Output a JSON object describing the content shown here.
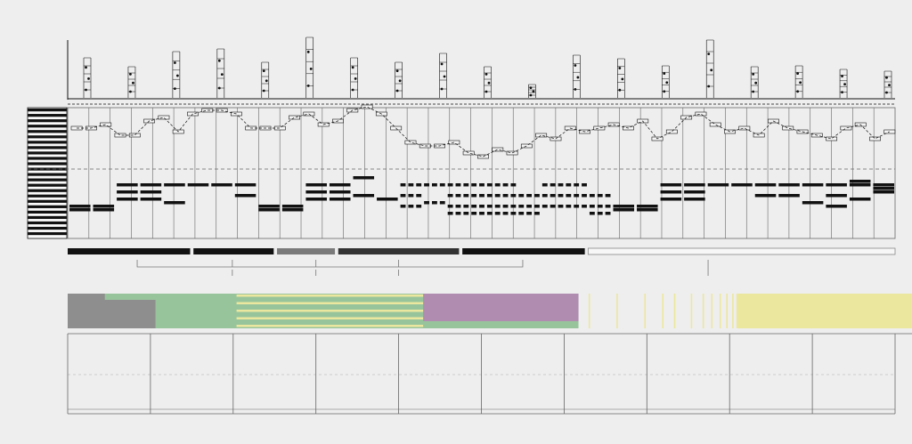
{
  "colors": {
    "background": "#eeeeee",
    "ink": "#111111",
    "grid": "#666666",
    "note_fill": "#f5f5f5",
    "segment_black": "#111111",
    "segment_gray": "#7a7a7a",
    "segment_dark": "#333333",
    "segment_white": "#f7f7f7",
    "green": "#98c49c",
    "gray_block": "#8e8e8e",
    "purple": "#b18cb1",
    "yellow": "#ece79e"
  },
  "icons": {
    "keyboard": "piano-keyboard-icon",
    "staff": "score-staff-icon"
  },
  "melody_steps": [
    9,
    9,
    10,
    7,
    7,
    11,
    12,
    8,
    13,
    14,
    14,
    13,
    9,
    9,
    9,
    12,
    13,
    10,
    11,
    14,
    15,
    13,
    9,
    5,
    4,
    4,
    5,
    2,
    1,
    3,
    2,
    4,
    7,
    6,
    9,
    8,
    9,
    10,
    9,
    11,
    6,
    8,
    12,
    13,
    10,
    8,
    9,
    7,
    11,
    9,
    8,
    7,
    6,
    9,
    10,
    6,
    8
  ],
  "chords": [
    [
      9,
      8
    ],
    [
      9,
      8
    ],
    [
      11,
      13,
      15
    ],
    [
      11,
      13,
      15
    ],
    [
      10,
      15
    ],
    [
      15
    ],
    [
      15
    ],
    [
      15,
      12
    ],
    [
      9,
      8
    ],
    [
      9,
      8
    ],
    [
      11,
      13,
      15
    ],
    [
      11,
      13,
      15
    ],
    [
      12,
      17
    ],
    [
      11
    ],
    [
      15,
      12,
      9
    ],
    [
      10,
      15
    ],
    [
      15,
      12,
      9,
      7
    ],
    [
      15,
      12,
      9,
      7
    ],
    [
      15,
      12,
      9,
      7
    ],
    [
      12,
      9,
      7
    ],
    [
      15,
      12,
      9
    ],
    [
      15,
      12,
      9
    ],
    [
      12,
      9,
      7
    ],
    [
      9,
      8
    ],
    [
      9,
      8
    ],
    [
      11,
      13,
      15
    ],
    [
      11,
      13,
      15
    ],
    [
      15
    ],
    [
      15
    ],
    [
      15,
      12
    ],
    [
      15,
      12
    ],
    [
      10,
      15
    ],
    [
      15,
      12,
      9
    ],
    [
      15,
      16,
      11
    ],
    [
      15,
      14,
      13
    ]
  ],
  "segments": [
    {
      "x0": 0,
      "x1": 0.148,
      "fill": "black"
    },
    {
      "x0": 0.152,
      "x1": 0.249,
      "fill": "black"
    },
    {
      "x0": 0.253,
      "x1": 0.323,
      "fill": "gray"
    },
    {
      "x0": 0.327,
      "x1": 0.473,
      "fill": "dark"
    },
    {
      "x0": 0.477,
      "x1": 0.625,
      "fill": "black"
    },
    {
      "x0": 0.629,
      "x1": 1,
      "fill": "white"
    }
  ],
  "brackets": [
    {
      "x0": 0.084,
      "x1": 0.55,
      "ticks": [
        0.199,
        0.3,
        0.4
      ]
    },
    {
      "ticks": [
        0.774
      ]
    }
  ],
  "blocks": [
    {
      "x0": 0,
      "x1": 0.084,
      "color": "gray_block",
      "rows": [
        0,
        1
      ]
    },
    {
      "x0": 0.084,
      "x1": 0.165,
      "color": "green",
      "rows": [
        0,
        1
      ]
    },
    {
      "x0": 0.165,
      "x1": 0.404,
      "color": "green",
      "rows": [
        0,
        1
      ],
      "stripes": 5
    },
    {
      "x0": 0.404,
      "x1": 0.572,
      "color": "purple",
      "rows": [
        0,
        1
      ]
    },
    {
      "x0": 0.795,
      "x1": 1,
      "color": "yellow",
      "rows": [
        0,
        1
      ]
    }
  ],
  "yellow_lines": [
    0.617,
    0.65,
    0.683,
    0.704,
    0.718,
    0.738,
    0.752,
    0.762,
    0.772,
    0.78,
    0.787,
    0.792
  ],
  "staff_glyphs": 19,
  "bar_count": 10
}
